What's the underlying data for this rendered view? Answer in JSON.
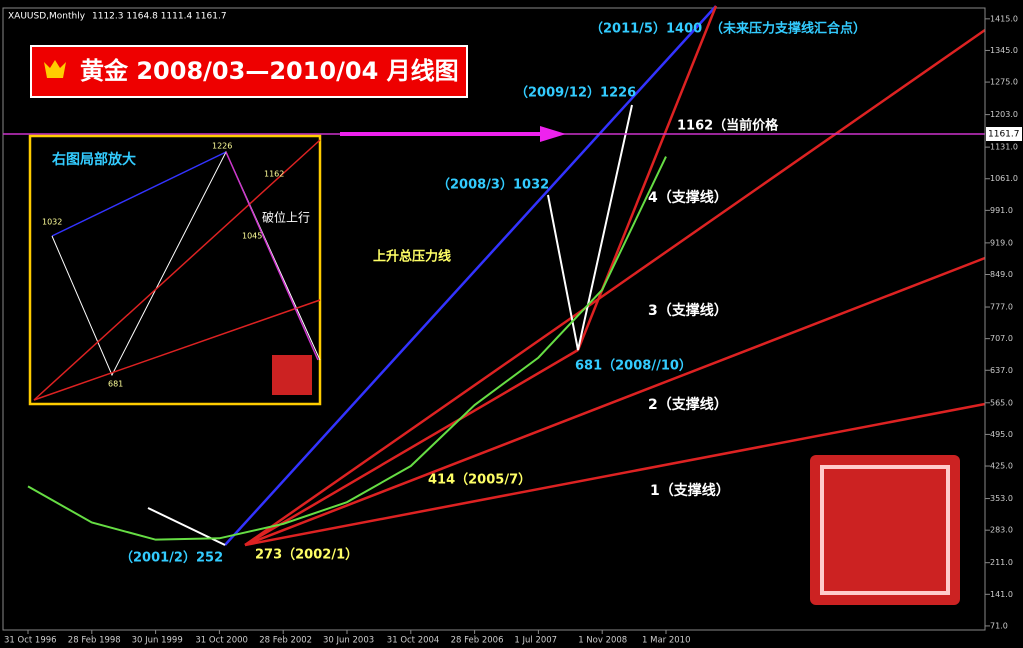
{
  "chart_data": {
    "type": "line",
    "title": "XAUUSD,Monthly",
    "subtitle": "1112.3 1164.8 1111.4 1161.7",
    "banner": "黄金 2008/03—2010/04 月线图",
    "inset_title": "右图局部放大",
    "current_price": 1161.7,
    "categories": [
      "31 Oct 1996",
      "28 Feb 1998",
      "30 Jun 1999",
      "31 Oct 2000",
      "28 Feb 2002",
      "30 Jun 2003",
      "31 Oct 2004",
      "28 Feb 2006",
      "1 Jul 2007",
      "1 Nov 2008",
      "1 Mar 2010"
    ],
    "series": [
      {
        "name": "XAUUSD",
        "color": "#66dd44",
        "values": [
          380,
          300,
          262,
          265,
          297,
          345,
          425,
          560,
          665,
          815,
          1110
        ]
      }
    ],
    "ylim": [
      62,
      1439
    ],
    "yticks": [
      {
        "value": 71,
        "label": "71.0"
      },
      {
        "value": 141,
        "label": "141.0"
      },
      {
        "value": 211,
        "label": "211.0"
      },
      {
        "value": 283,
        "label": "283.0"
      },
      {
        "value": 353,
        "label": "353.0"
      },
      {
        "value": 425,
        "label": "425.0"
      },
      {
        "value": 495,
        "label": "495.0"
      },
      {
        "value": 565,
        "label": "565.0"
      },
      {
        "value": 637,
        "label": "637.0"
      },
      {
        "value": 707,
        "label": "707.0"
      },
      {
        "value": 777,
        "label": "777.0"
      },
      {
        "value": 849,
        "label": "849.0"
      },
      {
        "value": 919,
        "label": "919.0"
      },
      {
        "value": 991,
        "label": "991.0"
      },
      {
        "value": 1061,
        "label": "1061.0"
      },
      {
        "value": 1131,
        "label": "1131.0"
      },
      {
        "value": 1203,
        "label": "1203.0"
      },
      {
        "value": 1275,
        "label": "1275.0"
      },
      {
        "value": 1345,
        "label": "1345.0"
      },
      {
        "value": 1415,
        "label": "1415.0"
      }
    ],
    "annotations": [
      "（2011/5）1400",
      "（未来压力支撑线汇合点）",
      "（2009/12）1226",
      "1162（当前价格",
      "（2008/3）1032",
      "4（支撑线）",
      "上升总压力线",
      "3（支撑线）",
      "681（2008//10）",
      "2（支撑线）",
      "414（2005/7）",
      "1（支撑线）",
      "（2001/2）252",
      "273（2002/1）"
    ],
    "inset_labels": [
      "1032",
      "1226",
      "1162",
      "1045",
      "破位上行",
      "681"
    ]
  }
}
